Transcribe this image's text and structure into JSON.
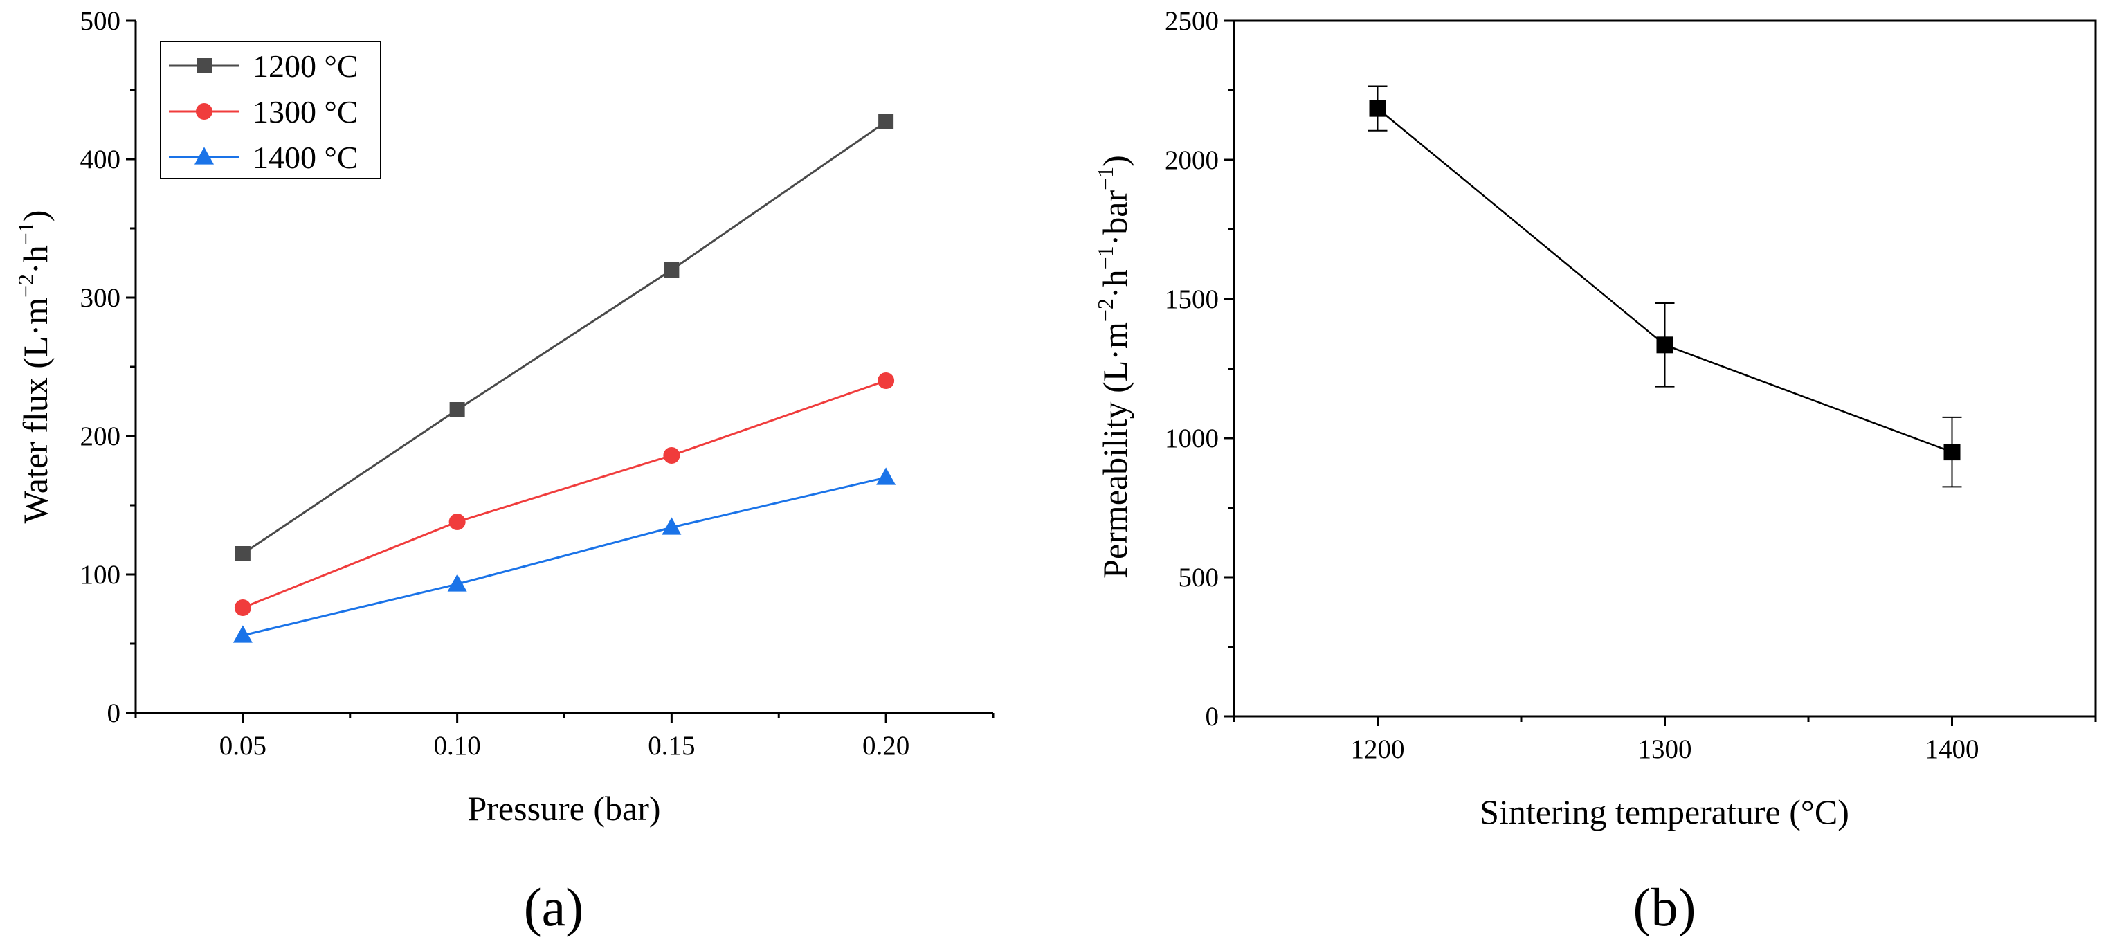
{
  "figure": {
    "panel_a_label": "(a)",
    "panel_b_label": "(b)"
  },
  "chart_data": [
    {
      "type": "line",
      "panel": "(a)",
      "title": "",
      "xlabel": "Pressure (bar)",
      "ylabel_main": "Water flux (L·m",
      "ylabel_sup1": "−2",
      "ylabel_mid": "·h",
      "ylabel_sup2": "−1",
      "ylabel_end": ")",
      "x": [
        0.05,
        0.1,
        0.15,
        0.2
      ],
      "xticks": [
        "0.05",
        "0.10",
        "0.15",
        "0.20"
      ],
      "xlim": [
        0.025,
        0.225
      ],
      "yticks": [
        "0",
        "100",
        "200",
        "300",
        "400",
        "500"
      ],
      "ylim": [
        0,
        500
      ],
      "legend_position": "top-left",
      "series": [
        {
          "name": "1200 °C",
          "color": "#4a4a4a",
          "marker": "square",
          "values": [
            115,
            219,
            320,
            427
          ]
        },
        {
          "name": "1300 °C",
          "color": "#f03c3c",
          "marker": "circle",
          "values": [
            76,
            138,
            186,
            240
          ]
        },
        {
          "name": "1400 °C",
          "color": "#1a73e8",
          "marker": "triangle",
          "values": [
            56,
            93,
            134,
            170
          ]
        }
      ]
    },
    {
      "type": "line",
      "panel": "(b)",
      "title": "",
      "xlabel": "Sintering temperature (°C)",
      "ylabel_main": "Permeability (L·m",
      "ylabel_sup1": "−2",
      "ylabel_mid": "·h",
      "ylabel_sup2": "−1",
      "ylabel_mid2": "·bar",
      "ylabel_sup3": "−1",
      "ylabel_end": ")",
      "x": [
        1200,
        1300,
        1400
      ],
      "xticks": [
        "1200",
        "1300",
        "1400"
      ],
      "xlim": [
        1150,
        1450
      ],
      "yticks": [
        "0",
        "500",
        "1000",
        "1500",
        "2000",
        "2500"
      ],
      "ylim": [
        0,
        2500
      ],
      "series": [
        {
          "name": "Permeability",
          "color": "#000000",
          "marker": "square",
          "values": [
            2185,
            1335,
            950
          ],
          "errors": [
            80,
            150,
            125
          ]
        }
      ]
    }
  ]
}
